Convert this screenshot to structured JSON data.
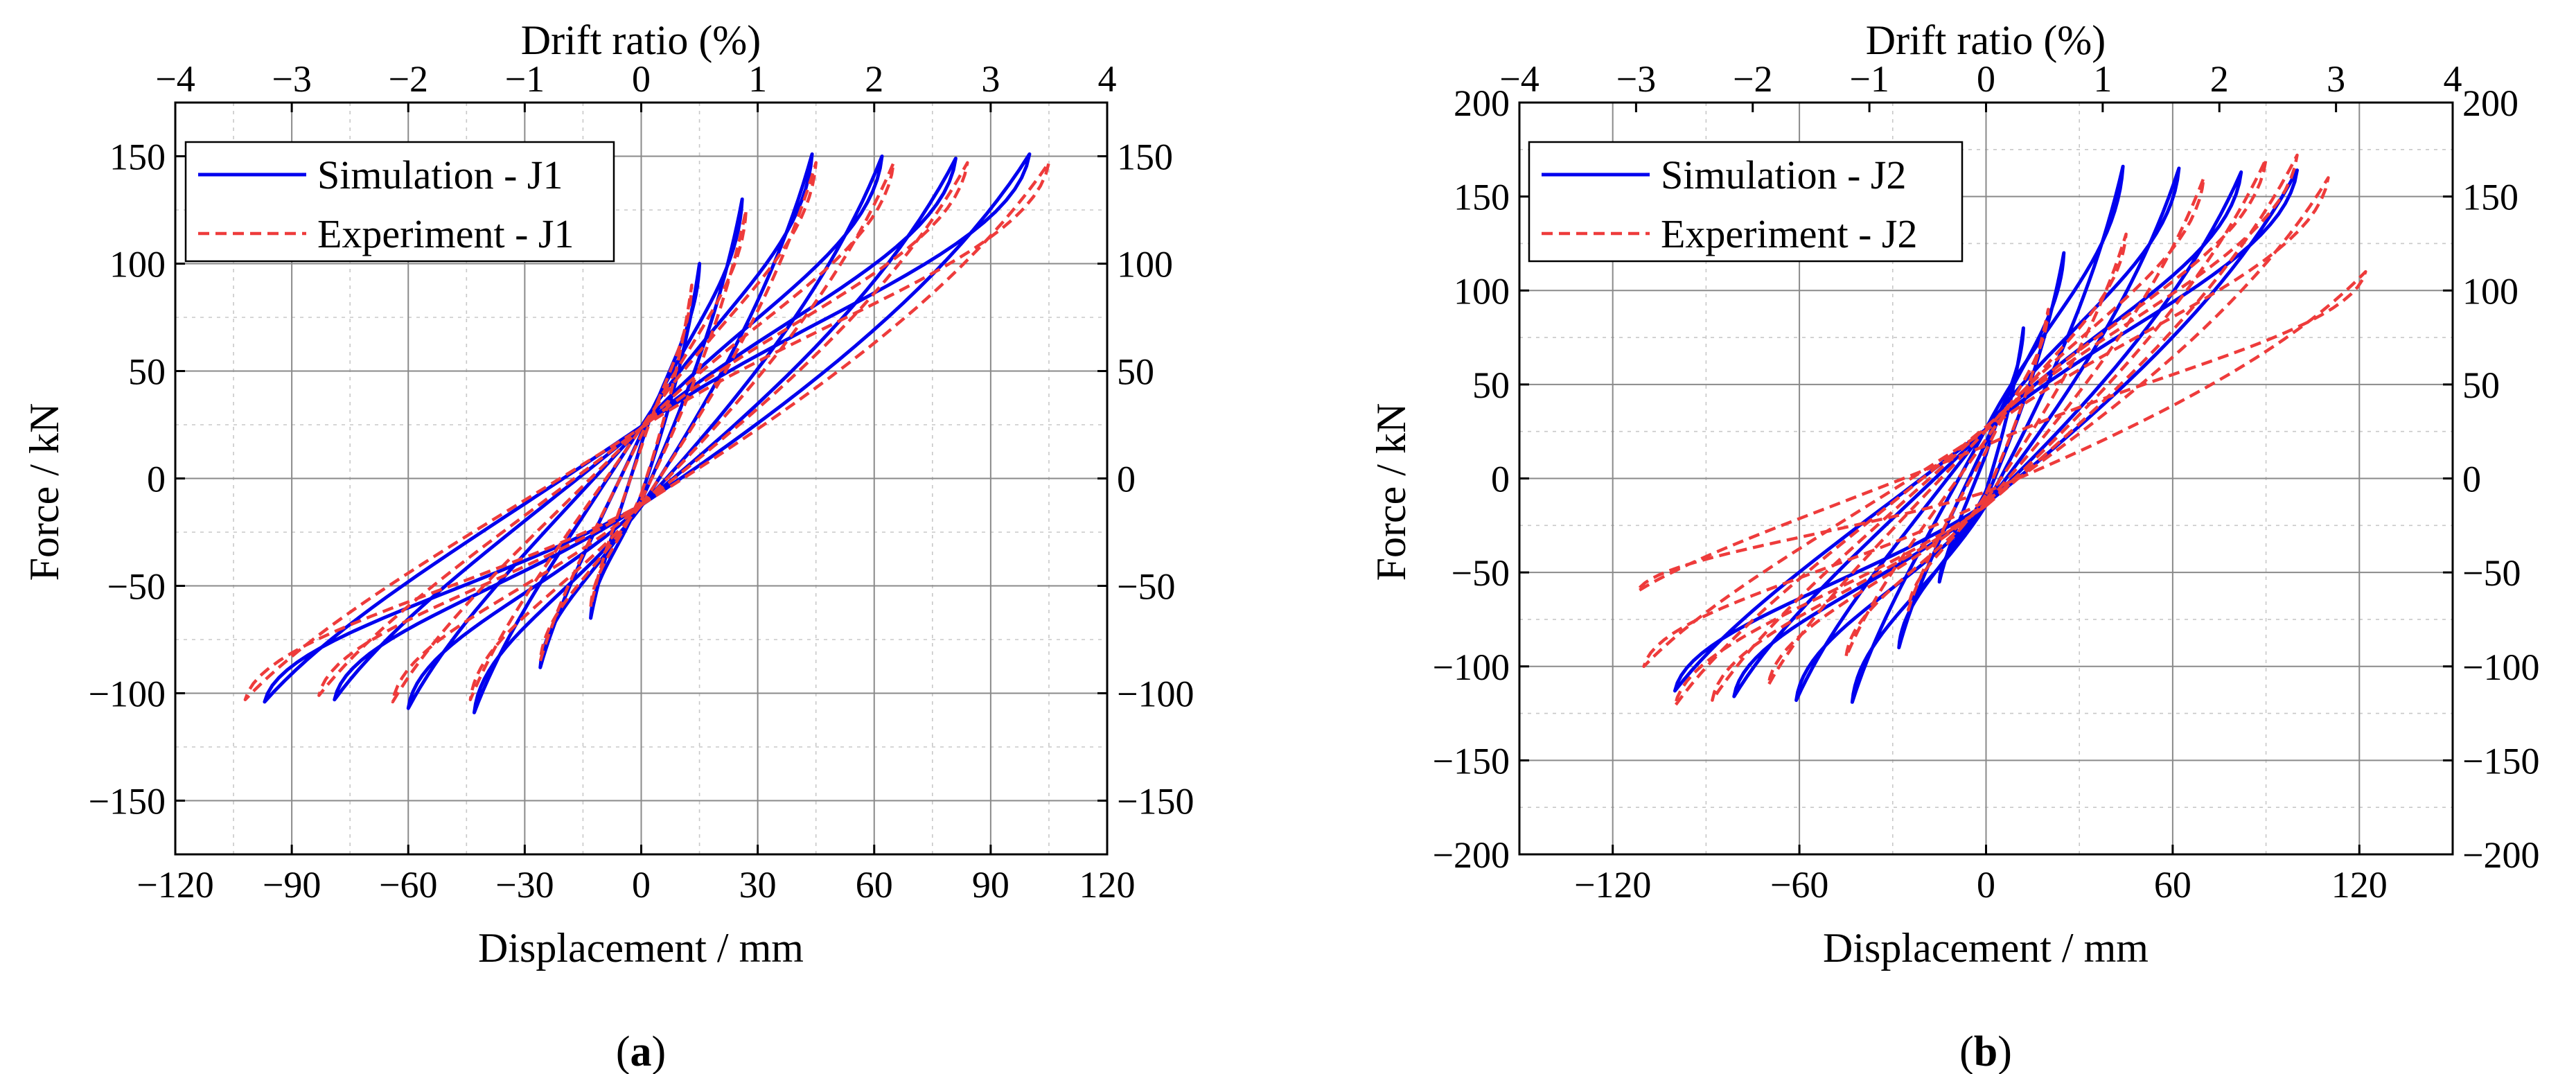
{
  "chart_data": [
    {
      "id": "a",
      "type": "line",
      "caption": {
        "prefix": "(",
        "letter": "a",
        "suffix": ")"
      },
      "xlabel": "Displacement / mm",
      "ylabel": "Force / kN",
      "top_xlabel": "Drift ratio (%)",
      "xlim": [
        -120,
        120
      ],
      "ylim": [
        -175,
        175
      ],
      "top_xlim": [
        -4,
        4
      ],
      "x_ticks": [
        -120,
        -90,
        -60,
        -30,
        0,
        30,
        60,
        90,
        120
      ],
      "x_tick_labels": [
        "−120",
        "−90",
        "−60",
        "−30",
        "0",
        "30",
        "60",
        "90",
        "120"
      ],
      "y_ticks": [
        -150,
        -100,
        -50,
        0,
        50,
        100,
        150
      ],
      "y_tick_labels": [
        "−150",
        "−100",
        "−50",
        "0",
        "50",
        "100",
        "150"
      ],
      "top_ticks": [
        -4,
        -3,
        -2,
        -1,
        0,
        1,
        2,
        3,
        4
      ],
      "top_tick_labels": [
        "−4",
        "−3",
        "−2",
        "−1",
        "0",
        "1",
        "2",
        "3",
        "4"
      ],
      "grid": true,
      "legend_position": "top-left",
      "series": [
        {
          "name": "Simulation - J1",
          "style": "solid",
          "color": "#0000ee",
          "loops": [
            {
              "xmax": 15,
              "ymax": 100,
              "xmin": -13,
              "ymin": -65
            },
            {
              "xmax": 26,
              "ymax": 130,
              "xmin": -26,
              "ymin": -88
            },
            {
              "xmax": 44,
              "ymax": 151,
              "xmin": -43,
              "ymin": -109
            },
            {
              "xmax": 62,
              "ymax": 150,
              "xmin": -60,
              "ymin": -107
            },
            {
              "xmax": 81,
              "ymax": 149,
              "xmin": -79,
              "ymin": -103
            },
            {
              "xmax": 100,
              "ymax": 151,
              "xmin": -97,
              "ymin": -104
            }
          ]
        },
        {
          "name": "Experiment - J1",
          "style": "dashed",
          "color": "#ee3b3b",
          "loops": [
            {
              "xmax": 13,
              "ymax": 90,
              "xmin": -13,
              "ymin": -60
            },
            {
              "xmax": 27,
              "ymax": 125,
              "xmin": -26,
              "ymin": -85
            },
            {
              "xmax": 45,
              "ymax": 147,
              "xmin": -44,
              "ymin": -103
            },
            {
              "xmax": 65,
              "ymax": 147,
              "xmin": -64,
              "ymin": -104
            },
            {
              "xmax": 84,
              "ymax": 147,
              "xmin": -83,
              "ymin": -101
            },
            {
              "xmax": 105,
              "ymax": 147,
              "xmin": -102,
              "ymin": -103
            }
          ]
        }
      ]
    },
    {
      "id": "b",
      "type": "line",
      "caption": {
        "prefix": "(",
        "letter": "b",
        "suffix": ")"
      },
      "xlabel": "Displacement / mm",
      "ylabel": "Force / kN",
      "top_xlabel": "Drift ratio (%)",
      "xlim": [
        -150,
        150
      ],
      "ylim": [
        -200,
        200
      ],
      "top_xlim": [
        -4,
        4
      ],
      "x_ticks": [
        -120,
        -60,
        0,
        60,
        120
      ],
      "x_tick_labels": [
        "−120",
        "−60",
        "0",
        "60",
        "120"
      ],
      "y_ticks": [
        -200,
        -150,
        -100,
        -50,
        0,
        50,
        100,
        150,
        200
      ],
      "y_tick_labels": [
        "−200",
        "−150",
        "−100",
        "−50",
        "0",
        "50",
        "100",
        "150",
        "200"
      ],
      "top_ticks": [
        -4,
        -3,
        -2,
        -1,
        0,
        1,
        2,
        3,
        4
      ],
      "top_tick_labels": [
        "−4",
        "−3",
        "−2",
        "−1",
        "0",
        "1",
        "2",
        "3",
        "4"
      ],
      "grid": true,
      "legend_position": "top-left",
      "series": [
        {
          "name": "Simulation - J2",
          "style": "solid",
          "color": "#0000ee",
          "loops": [
            {
              "xmax": 12,
              "ymax": 80,
              "xmin": -15,
              "ymin": -55
            },
            {
              "xmax": 25,
              "ymax": 120,
              "xmin": -28,
              "ymin": -90
            },
            {
              "xmax": 44,
              "ymax": 166,
              "xmin": -43,
              "ymin": -119
            },
            {
              "xmax": 62,
              "ymax": 165,
              "xmin": -61,
              "ymin": -118
            },
            {
              "xmax": 82,
              "ymax": 163,
              "xmin": -81,
              "ymin": -116
            },
            {
              "xmax": 100,
              "ymax": 164,
              "xmin": -100,
              "ymin": -113
            }
          ]
        },
        {
          "name": "Experiment - J2",
          "style": "dashed",
          "color": "#ee3b3b",
          "loops": [
            {
              "xmax": 20,
              "ymax": 90,
              "xmin": -25,
              "ymin": -70
            },
            {
              "xmax": 45,
              "ymax": 130,
              "xmin": -45,
              "ymin": -95
            },
            {
              "xmax": 70,
              "ymax": 160,
              "xmin": -70,
              "ymin": -110
            },
            {
              "xmax": 90,
              "ymax": 170,
              "xmin": -88,
              "ymin": -118
            },
            {
              "xmax": 100,
              "ymax": 172,
              "xmin": -100,
              "ymin": -121
            },
            {
              "xmax": 110,
              "ymax": 160,
              "xmin": -110,
              "ymin": -100
            },
            {
              "xmax": 122,
              "ymax": 110,
              "xmin": -112,
              "ymin": -60
            }
          ]
        }
      ]
    }
  ]
}
